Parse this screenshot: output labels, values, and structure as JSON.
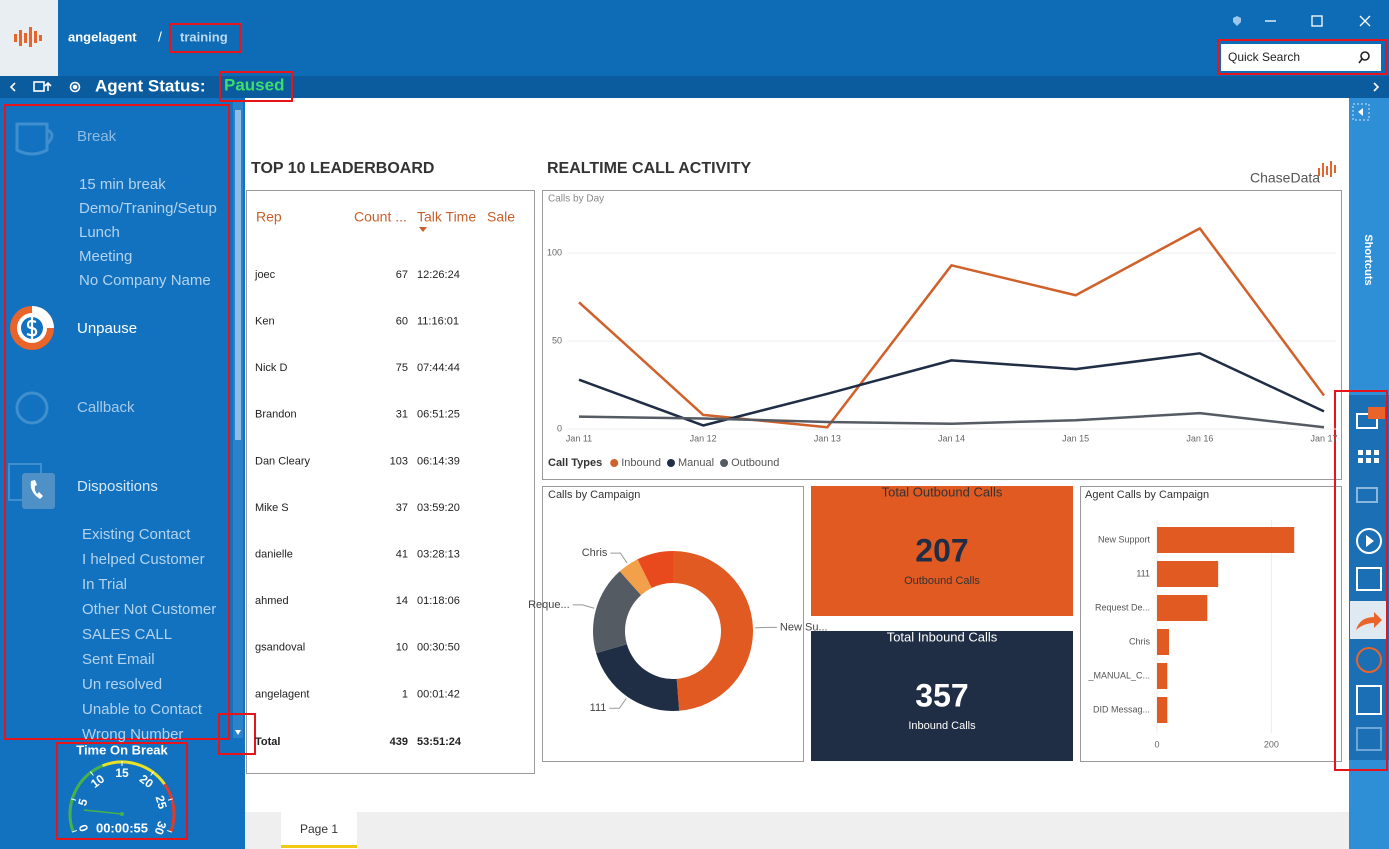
{
  "header": {
    "user": "angelagent",
    "separator": "/",
    "campaign": "training",
    "search_placeholder": "Quick Search"
  },
  "status": {
    "label": "Agent Status:",
    "value": "Paused"
  },
  "sidebar": {
    "break": {
      "label": "Break",
      "options": [
        "15 min break",
        "Demo/Traning/Setup",
        "Lunch",
        "Meeting",
        "No Company Name"
      ]
    },
    "unpause": "Unpause",
    "callback": "Callback",
    "dispositions": {
      "label": "Dispositions",
      "options": [
        "Existing Contact",
        "I helped Customer",
        "In Trial",
        "Other Not Customer",
        "SALES CALL",
        "Sent Email",
        "Un resolved",
        "Unable to Contact",
        "Wrong Number"
      ]
    }
  },
  "timer": {
    "title": "Time On Break",
    "gauge_ticks": [
      0,
      5,
      10,
      15,
      20,
      25,
      30
    ],
    "elapsed": "00:00:55"
  },
  "leaderboard": {
    "title": "TOP 10 LEADERBOARD",
    "columns": [
      "Rep",
      "Count ...",
      "Talk Time",
      "Sale"
    ],
    "rows": [
      [
        "joec",
        67,
        "12:26:24"
      ],
      [
        "Ken",
        60,
        "11:16:01"
      ],
      [
        "Nick D",
        75,
        "07:44:44"
      ],
      [
        "Brandon",
        31,
        "06:51:25"
      ],
      [
        "Dan Cleary",
        103,
        "06:14:39"
      ],
      [
        "Mike S",
        37,
        "03:59:20"
      ],
      [
        "danielle",
        41,
        "03:28:13"
      ],
      [
        "ahmed",
        14,
        "01:18:06"
      ],
      [
        "gsandoval",
        10,
        "00:30:50"
      ],
      [
        "angelagent",
        1,
        "00:01:42"
      ]
    ],
    "total": [
      "Total",
      439,
      "53:51:24"
    ]
  },
  "dashboard_title": "REALTIME CALL ACTIVITY",
  "brand": "ChaseData",
  "kpis": [
    {
      "title": "Total Outbound Calls",
      "value": 207,
      "caption": "Outbound Calls",
      "color": "#e05a22"
    },
    {
      "title": "Total Inbound Calls",
      "value": 357,
      "caption": "Inbound Calls",
      "color": "#1f2d45"
    }
  ],
  "chart_data": [
    {
      "type": "line",
      "title": "Calls by Day",
      "categories": [
        "Jan 11",
        "Jan 12",
        "Jan 13",
        "Jan 14",
        "Jan 15",
        "Jan 16",
        "Jan 17"
      ],
      "ylim": [
        0,
        125
      ],
      "yticks": [
        0,
        50,
        100
      ],
      "grid": true,
      "legend_title": "Call Types",
      "series": [
        {
          "name": "Inbound",
          "color": "#d0612a",
          "values": [
            72,
            8,
            1,
            93,
            76,
            114,
            19
          ]
        },
        {
          "name": "Manual",
          "color": "#1f2d45",
          "values": [
            28,
            2,
            20,
            39,
            34,
            43,
            10
          ]
        },
        {
          "name": "Outbound",
          "color": "#555b63",
          "values": [
            7,
            6,
            4,
            3,
            5,
            9,
            1
          ]
        }
      ]
    },
    {
      "type": "pie",
      "title": "Calls by Campaign",
      "donut": true,
      "categories": [
        "New Su...",
        "111",
        "Reque...",
        "Chris",
        null
      ],
      "values": [
        240,
        107,
        88,
        21,
        36
      ],
      "colors": [
        "#e05a22",
        "#1f2d45",
        "#555b63",
        "#f2a04a",
        "#e8491d"
      ]
    },
    {
      "type": "bar",
      "orientation": "horizontal",
      "title": "Agent Calls by Campaign",
      "categories": [
        "New Support",
        "111",
        "Request De...",
        "Chris",
        "_MANUAL_C...",
        "DID Messag..."
      ],
      "values": [
        240,
        107,
        88,
        21,
        18,
        18
      ],
      "color": "#e05a22",
      "xlim": [
        0,
        300
      ],
      "xticks": [
        0,
        200
      ],
      "grid": true
    }
  ],
  "shortcuts": "Shortcuts",
  "page_tab": "Page 1"
}
